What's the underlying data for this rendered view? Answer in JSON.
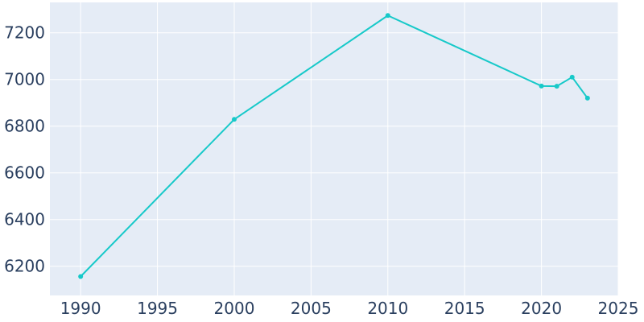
{
  "chart_data": {
    "type": "line",
    "title": "",
    "xlabel": "",
    "ylabel": "",
    "x": [
      1990,
      2000,
      2010,
      2020,
      2021,
      2022,
      2023
    ],
    "series": [
      {
        "values": [
          6156,
          6829,
          7274,
          6972,
          6971,
          7010,
          6920
        ]
      }
    ],
    "xlim": [
      1988,
      2025
    ],
    "ylim": [
      6075,
      7330
    ],
    "x_ticks": [
      "1990",
      "1995",
      "2000",
      "2005",
      "2010",
      "2015",
      "2020",
      "2025"
    ],
    "y_ticks": [
      "6200",
      "6400",
      "6600",
      "6800",
      "7000",
      "7200"
    ],
    "grid": true,
    "legend": "none",
    "colors": {
      "line": "#17c9c9",
      "plot_bg": "#e5ecf6",
      "grid": "#ffffff",
      "text": "#2a3f5f"
    }
  }
}
